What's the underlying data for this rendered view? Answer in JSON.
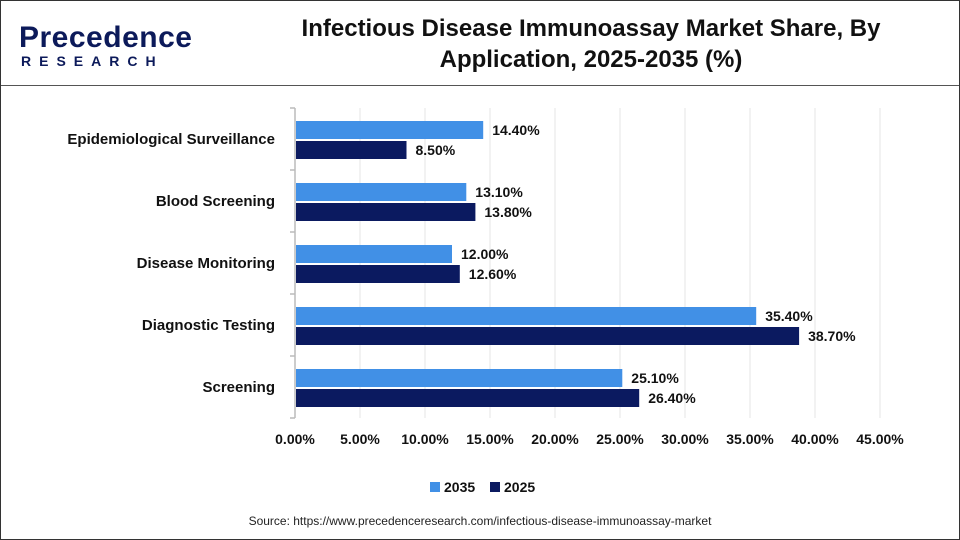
{
  "header": {
    "logo_line1": "Precedence",
    "logo_line2": "RESEARCH",
    "title_line1": "Infectious Disease Immunoassay Market Share, By",
    "title_line2": "Application, 2025-2035 (%)"
  },
  "source": "Source: https://www.precedenceresearch.com/infectious-disease-immunoassay-market",
  "chart_data": {
    "type": "bar",
    "orientation": "horizontal",
    "categories": [
      "Epidemiological Surveillance",
      "Blood Screening",
      "Disease Monitoring",
      "Diagnostic Testing",
      "Screening"
    ],
    "series": [
      {
        "name": "2035",
        "color": "#4190e6",
        "values": [
          14.4,
          13.1,
          12.0,
          35.4,
          25.1
        ],
        "labels": [
          "14.40%",
          "13.10%",
          "12.00%",
          "35.40%",
          "25.10%"
        ]
      },
      {
        "name": "2025",
        "color": "#0b1a60",
        "values": [
          8.5,
          13.8,
          12.6,
          38.7,
          26.4
        ],
        "labels": [
          "8.50%",
          "13.80%",
          "12.60%",
          "38.70%",
          "26.40%"
        ]
      }
    ],
    "xlim": [
      0,
      45
    ],
    "xticks": [
      "0.00%",
      "5.00%",
      "10.00%",
      "15.00%",
      "20.00%",
      "25.00%",
      "30.00%",
      "35.00%",
      "40.00%",
      "45.00%"
    ],
    "grid": true,
    "legend": "bottom"
  }
}
